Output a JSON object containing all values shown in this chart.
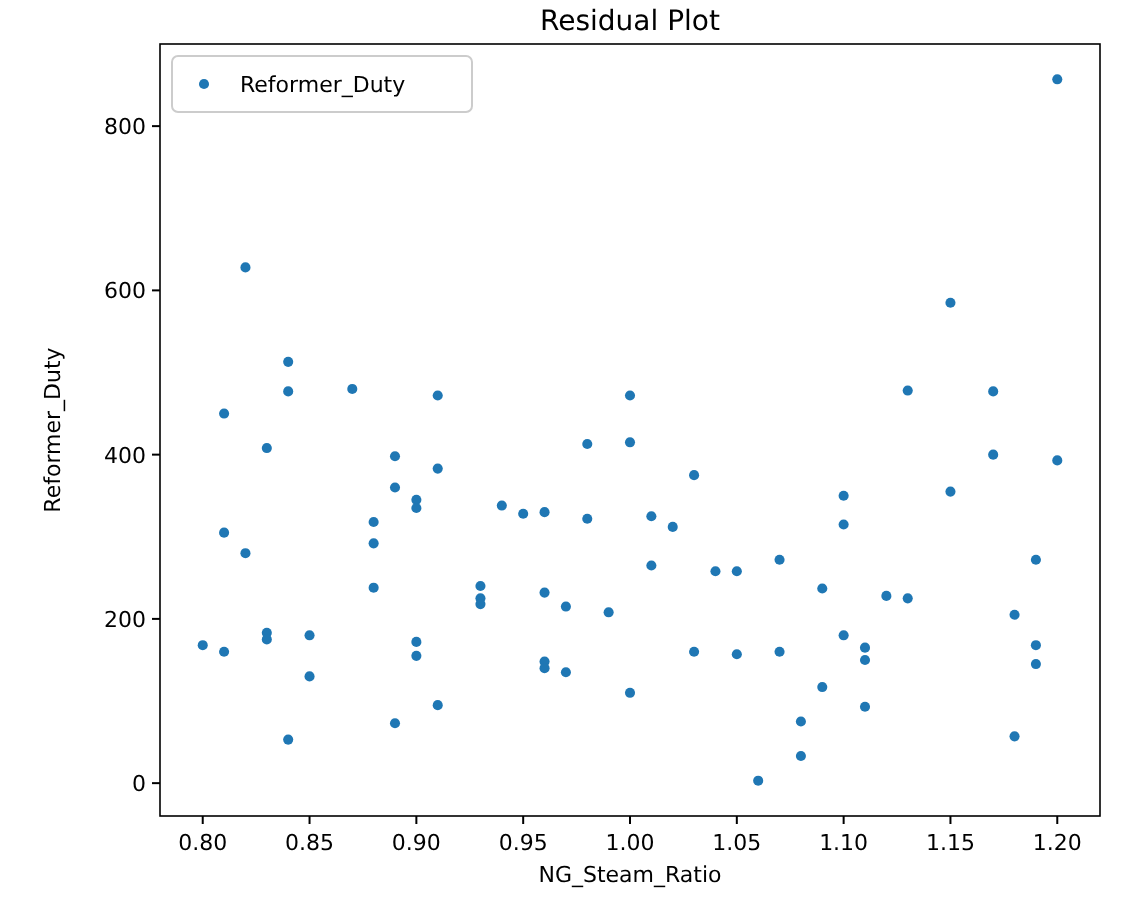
{
  "chart_data": {
    "type": "scatter",
    "title": "Residual Plot",
    "xlabel": "NG_Steam_Ratio",
    "ylabel": "Reformer_Duty",
    "xlim": [
      0.78,
      1.22
    ],
    "ylim": [
      -40,
      900
    ],
    "xticks": [
      {
        "value": 0.8,
        "label": "0.80"
      },
      {
        "value": 0.85,
        "label": "0.85"
      },
      {
        "value": 0.9,
        "label": "0.90"
      },
      {
        "value": 0.95,
        "label": "0.95"
      },
      {
        "value": 1.0,
        "label": "1.00"
      },
      {
        "value": 1.05,
        "label": "1.05"
      },
      {
        "value": 1.1,
        "label": "1.10"
      },
      {
        "value": 1.15,
        "label": "1.15"
      },
      {
        "value": 1.2,
        "label": "1.20"
      }
    ],
    "yticks": [
      0,
      200,
      400,
      600,
      800
    ],
    "grid": false,
    "legend": "top left",
    "marker": "circle",
    "series": [
      {
        "name": "Reformer_Duty",
        "color": "#1f77b4",
        "x": [
          0.8,
          0.81,
          0.81,
          0.81,
          0.82,
          0.82,
          0.83,
          0.83,
          0.83,
          0.84,
          0.84,
          0.84,
          0.85,
          0.85,
          0.87,
          0.88,
          0.88,
          0.88,
          0.89,
          0.89,
          0.89,
          0.9,
          0.9,
          0.9,
          0.9,
          0.91,
          0.91,
          0.91,
          0.93,
          0.93,
          0.93,
          0.94,
          0.95,
          0.96,
          0.96,
          0.96,
          0.96,
          0.97,
          0.97,
          0.98,
          0.98,
          0.99,
          1.0,
          1.0,
          1.0,
          1.01,
          1.01,
          1.02,
          1.03,
          1.03,
          1.04,
          1.05,
          1.05,
          1.06,
          1.07,
          1.07,
          1.08,
          1.08,
          1.09,
          1.09,
          1.1,
          1.1,
          1.1,
          1.11,
          1.11,
          1.11,
          1.12,
          1.13,
          1.13,
          1.15,
          1.15,
          1.17,
          1.17,
          1.18,
          1.18,
          1.19,
          1.19,
          1.19,
          1.2,
          1.2
        ],
        "values": [
          168,
          160,
          450,
          305,
          628,
          280,
          408,
          183,
          175,
          513,
          477,
          53,
          180,
          130,
          480,
          318,
          292,
          238,
          398,
          360,
          73,
          345,
          335,
          172,
          155,
          472,
          383,
          95,
          240,
          225,
          218,
          338,
          328,
          330,
          232,
          148,
          140,
          215,
          135,
          413,
          322,
          208,
          472,
          415,
          110,
          325,
          265,
          312,
          375,
          160,
          258,
          258,
          157,
          3,
          272,
          160,
          75,
          33,
          237,
          117,
          350,
          315,
          180,
          165,
          150,
          93,
          228,
          478,
          225,
          585,
          355,
          477,
          400,
          205,
          57,
          272,
          168,
          145,
          857,
          393
        ]
      }
    ]
  }
}
